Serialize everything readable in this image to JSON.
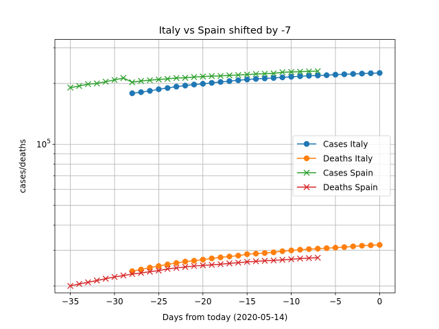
{
  "chart_data": {
    "type": "line",
    "title": "Italy vs Spain shifted by -7",
    "xlabel": "Days from today (2020-05-14)",
    "ylabel": "cases/deaths",
    "xlim": [
      -36.75,
      1.75
    ],
    "ylim": [
      18500,
      330000
    ],
    "yscale": "log",
    "grid": true,
    "grid_which": "both",
    "legend_position": "center-right",
    "x_ticks": [
      -35,
      -30,
      -25,
      -20,
      -15,
      -10,
      -5,
      0
    ],
    "x_tick_labels": [
      "−35",
      "−30",
      "−25",
      "−20",
      "−15",
      "−10",
      "−5",
      "0"
    ],
    "y_ticks_major": [
      100000
    ],
    "y_tick_labels_major": [
      "10^5"
    ],
    "y_ticks_minor": [
      20000,
      30000,
      40000,
      50000,
      60000,
      70000,
      80000,
      90000,
      200000,
      300000
    ],
    "series": [
      {
        "name": "Cases Italy",
        "color": "#1f77b4",
        "marker": "circle",
        "x": [
          -28,
          -27,
          -26,
          -25,
          -24,
          -23,
          -22,
          -21,
          -20,
          -19,
          -18,
          -17,
          -16,
          -15,
          -14,
          -13,
          -12,
          -11,
          -10,
          -9,
          -8,
          -7,
          -6,
          -5,
          -4,
          -3,
          -2,
          -1,
          0
        ],
        "y": [
          178972,
          181228,
          183957,
          187327,
          189973,
          192994,
          195351,
          197675,
          199414,
          201505,
          203591,
          205463,
          207428,
          209328,
          210717,
          211938,
          213013,
          214457,
          215858,
          217185,
          218268,
          219070,
          219814,
          221216,
          222104,
          223096,
          223885,
          224760,
          225435
        ]
      },
      {
        "name": "Deaths Italy",
        "color": "#ff7f0e",
        "marker": "circle",
        "x": [
          -28,
          -27,
          -26,
          -25,
          -24,
          -23,
          -22,
          -21,
          -20,
          -19,
          -18,
          -17,
          -16,
          -15,
          -14,
          -13,
          -12,
          -11,
          -10,
          -9,
          -8,
          -7,
          -6,
          -5,
          -4,
          -3,
          -2,
          -1,
          0
        ],
        "y": [
          23660,
          24114,
          24648,
          25085,
          25549,
          25969,
          26384,
          26644,
          26977,
          27359,
          27682,
          27967,
          28236,
          28710,
          28884,
          29079,
          29315,
          29684,
          29958,
          30201,
          30395,
          30560,
          30739,
          30911,
          31106,
          31368,
          31610,
          31763,
          31908
        ]
      },
      {
        "name": "Cases Spain",
        "color": "#2ca02c",
        "marker": "x",
        "x": [
          -35,
          -34,
          -33,
          -32,
          -31,
          -30,
          -29,
          -28,
          -27,
          -26,
          -25,
          -24,
          -23,
          -22,
          -21,
          -20,
          -19,
          -18,
          -17,
          -16,
          -15,
          -14,
          -13,
          -12,
          -11,
          -10,
          -9,
          -8,
          -7
        ],
        "y": [
          190839,
          194416,
          198674,
          200210,
          204178,
          208389,
          213024,
          202990,
          205905,
          207634,
          209465,
          210773,
          212917,
          213435,
          215216,
          216582,
          217466,
          218011,
          219329,
          220325,
          221447,
          222857,
          223578,
          224350,
          227436,
          228030,
          228691,
          229540,
          230183
        ]
      },
      {
        "name": "Deaths Spain",
        "color": "#d62728",
        "marker": "x",
        "x": [
          -35,
          -34,
          -33,
          -32,
          -31,
          -30,
          -29,
          -28,
          -27,
          -26,
          -25,
          -24,
          -23,
          -22,
          -21,
          -20,
          -19,
          -18,
          -17,
          -16,
          -15,
          -14,
          -13,
          -12,
          -11,
          -10,
          -9,
          -8,
          -7
        ],
        "y": [
          20002,
          20453,
          20852,
          21282,
          21717,
          22157,
          22524,
          22902,
          23190,
          23521,
          23822,
          24275,
          24543,
          24824,
          25100,
          25264,
          25428,
          25613,
          25857,
          26070,
          26299,
          26478,
          26621,
          26744,
          26920,
          27104,
          27321,
          27459,
          27563
        ]
      }
    ]
  }
}
